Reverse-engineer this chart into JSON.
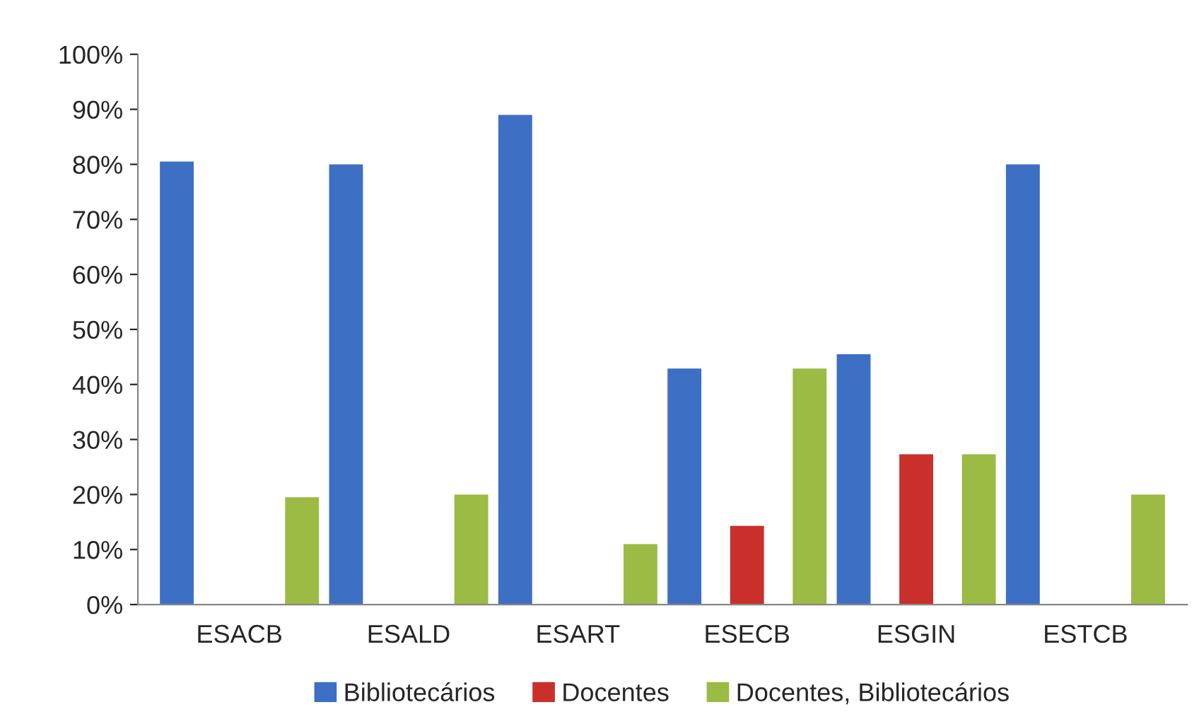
{
  "chart_data": {
    "type": "bar",
    "categories": [
      "ESACB",
      "ESALD",
      "ESART",
      "ESECB",
      "ESGIN",
      "ESTCB"
    ],
    "series": [
      {
        "name": "Bibliotecários",
        "color": "#3d6fc4",
        "values": [
          80.5,
          80,
          89,
          42.9,
          45.5,
          80
        ]
      },
      {
        "name": "Docentes",
        "color": "#c9302c",
        "values": [
          null,
          null,
          null,
          14.3,
          27.3,
          null
        ]
      },
      {
        "name": "Docentes, Bibliotecários",
        "color": "#9bbb45",
        "values": [
          19.5,
          20,
          11,
          42.9,
          27.3,
          20
        ]
      }
    ],
    "ylim": [
      0,
      100
    ],
    "yticks": [
      {
        "value": 0,
        "label": "0%"
      },
      {
        "value": 10,
        "label": "10%"
      },
      {
        "value": 20,
        "label": "20%"
      },
      {
        "value": 30,
        "label": "30%"
      },
      {
        "value": 40,
        "label": "40%"
      },
      {
        "value": 50,
        "label": "50%"
      },
      {
        "value": 60,
        "label": "60%"
      },
      {
        "value": 70,
        "label": "70%"
      },
      {
        "value": 80,
        "label": "80%"
      },
      {
        "value": 90,
        "label": "90%"
      },
      {
        "value": 100,
        "label": "100%"
      }
    ],
    "legend": "bottom"
  }
}
